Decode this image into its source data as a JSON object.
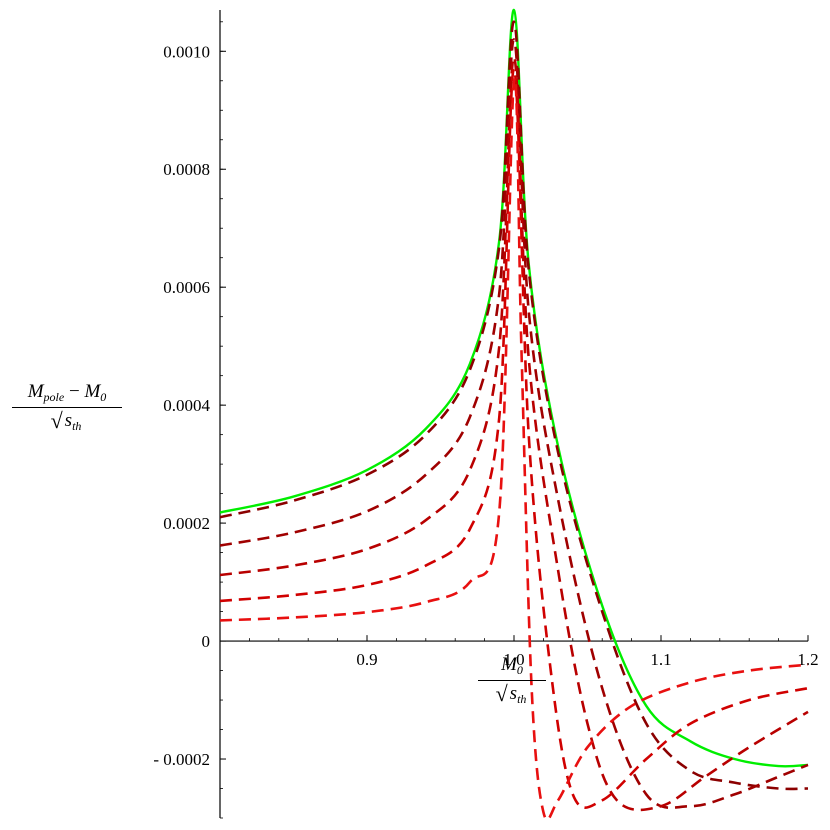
{
  "chart_data": {
    "type": "line",
    "xlabel": {
      "numerator": "M0",
      "numerator_sub": "0",
      "denominator_sym": "s",
      "denominator_sub": "th"
    },
    "ylabel": {
      "numerator_a": "M",
      "numerator_a_sub": "pole",
      "numerator_op": " − ",
      "numerator_b": "M",
      "numerator_b_sub": "0",
      "denominator_sym": "s",
      "denominator_sub": "th"
    },
    "xlim": [
      0.8,
      1.2
    ],
    "ylim": [
      -0.0003,
      0.00107
    ],
    "x_ticks": [
      0.9,
      1.0,
      1.1,
      1.2
    ],
    "x_tick_labels": [
      "0.9",
      "1.0",
      "1.1",
      "1.2"
    ],
    "y_ticks": [
      -0.0002,
      0,
      0.0002,
      0.0004,
      0.0006,
      0.0008,
      0.001
    ],
    "y_tick_labels": [
      "- 0.0002",
      "0",
      "0.0002",
      "0.0004",
      "0.0006",
      "0.0008",
      "0.0010"
    ],
    "grid": false,
    "legend": "none",
    "series": [
      {
        "style": "solid",
        "color": "#00ee00",
        "x": [
          0.8,
          0.85,
          0.9,
          0.94,
          0.97,
          0.99,
          1.0,
          1.01,
          1.03,
          1.06,
          1.09,
          1.12,
          1.15,
          1.18,
          1.2
        ],
        "y": [
          0.000218,
          0.000245,
          0.00029,
          0.00036,
          0.00047,
          0.00068,
          0.00107,
          0.00064,
          0.00033,
          6e-05,
          -0.00011,
          -0.00017,
          -0.0002,
          -0.000212,
          -0.00021
        ]
      },
      {
        "style": "dashed",
        "color": "#8b0000",
        "x": [
          0.8,
          0.85,
          0.9,
          0.94,
          0.97,
          0.99,
          1.0,
          1.01,
          1.03,
          1.06,
          1.09,
          1.12,
          1.15,
          1.18,
          1.2
        ],
        "y": [
          0.00021,
          0.000238,
          0.000282,
          0.00035,
          0.00046,
          0.00067,
          0.00105,
          0.00063,
          0.00032,
          5e-05,
          -0.00014,
          -0.00022,
          -0.00024,
          -0.00025,
          -0.00025
        ]
      },
      {
        "style": "dashed",
        "color": "#a00000",
        "x": [
          0.8,
          0.85,
          0.9,
          0.94,
          0.97,
          0.99,
          1.0,
          1.01,
          1.03,
          1.06,
          1.09,
          1.12,
          1.15,
          1.18,
          1.2
        ],
        "y": [
          0.000162,
          0.000184,
          0.00022,
          0.000282,
          0.00038,
          0.00059,
          0.00102,
          0.00056,
          0.00024,
          -8e-05,
          -0.00026,
          -0.00028,
          -0.00026,
          -0.00023,
          -0.00021
        ]
      },
      {
        "style": "dashed",
        "color": "#b80000",
        "x": [
          0.8,
          0.85,
          0.9,
          0.94,
          0.97,
          0.99,
          1.0,
          1.01,
          1.03,
          1.05,
          1.07,
          1.1,
          1.13,
          1.16,
          1.2
        ],
        "y": [
          0.000112,
          0.000128,
          0.000156,
          0.000205,
          0.00029,
          0.0005,
          0.00099,
          0.00048,
          0.00012,
          -0.00014,
          -0.00027,
          -0.00028,
          -0.00023,
          -0.00018,
          -0.00012
        ]
      },
      {
        "style": "dashed",
        "color": "#d00000",
        "x": [
          0.8,
          0.85,
          0.9,
          0.94,
          0.97,
          0.99,
          1.0,
          1.01,
          1.025,
          1.04,
          1.06,
          1.09,
          1.12,
          1.16,
          1.2
        ],
        "y": [
          6.8e-05,
          7.8e-05,
          9.5e-05,
          0.000128,
          0.00019,
          0.00038,
          0.00097,
          0.00035,
          -5e-05,
          -0.00026,
          -0.00027,
          -0.0002,
          -0.00014,
          -0.0001,
          -8e-05
        ]
      },
      {
        "style": "dashed",
        "color": "#e81010",
        "x": [
          0.8,
          0.85,
          0.9,
          0.94,
          0.97,
          0.99,
          1.0,
          1.005,
          1.012,
          1.02,
          1.03,
          1.05,
          1.08,
          1.12,
          1.16,
          1.2
        ],
        "y": [
          3.5e-05,
          4e-05,
          4.9e-05,
          6.6e-05,
          0.0001,
          0.00022,
          0.00095,
          0.0005,
          -8e-05,
          -0.00029,
          -0.00027,
          -0.00018,
          -0.00011,
          -7e-05,
          -5e-05,
          -4e-05
        ]
      }
    ]
  }
}
